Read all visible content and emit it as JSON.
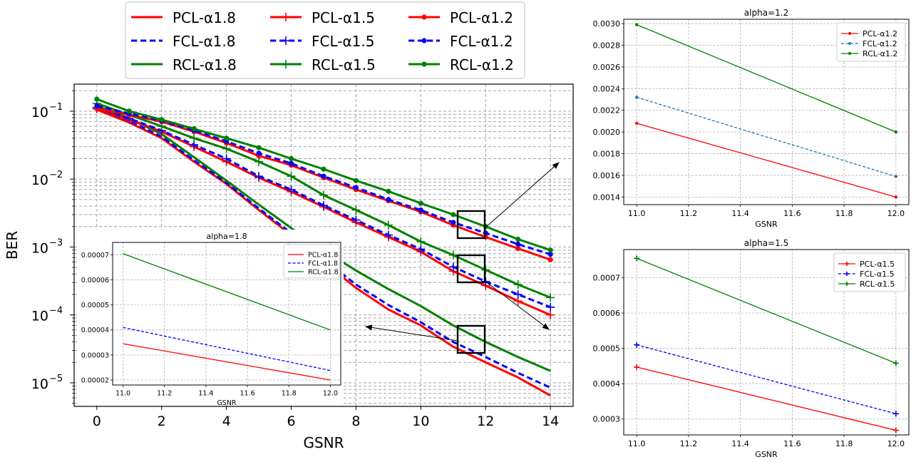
{
  "legend_main": {
    "entries": [
      {
        "label": "PCL-α1.8",
        "color": "#ff0000",
        "dash": "solid",
        "marker": "none"
      },
      {
        "label": "FCL-α1.8",
        "color": "#0000ff",
        "dash": "dashed",
        "marker": "none"
      },
      {
        "label": "RCL-α1.8",
        "color": "#008000",
        "dash": "solid",
        "marker": "none"
      },
      {
        "label": "PCL-α1.5",
        "color": "#ff0000",
        "dash": "solid",
        "marker": "plus"
      },
      {
        "label": "FCL-α1.5",
        "color": "#0000ff",
        "dash": "dashed",
        "marker": "plus"
      },
      {
        "label": "RCL-α1.5",
        "color": "#008000",
        "dash": "solid",
        "marker": "plus"
      },
      {
        "label": "PCL-α1.2",
        "color": "#ff0000",
        "dash": "solid",
        "marker": "dot"
      },
      {
        "label": "FCL-α1.2",
        "color": "#0000ff",
        "dash": "dashed",
        "marker": "dot"
      },
      {
        "label": "RCL-α1.2",
        "color": "#008000",
        "dash": "solid",
        "marker": "dot"
      }
    ]
  },
  "chart_data": [
    {
      "id": "main",
      "type": "line",
      "xlabel": "GSNR",
      "ylabel": "BER",
      "yscale": "log",
      "xlim": [
        -0.7,
        14.7
      ],
      "ylim": [
        4.5e-06,
        0.25
      ],
      "xticks": [
        0,
        2,
        4,
        6,
        8,
        10,
        12,
        14
      ],
      "yticks": [
        {
          "value": 0.1,
          "base": "10",
          "exp": "−1"
        },
        {
          "value": 0.01,
          "base": "10",
          "exp": "−2"
        },
        {
          "value": 0.001,
          "base": "10",
          "exp": "−3"
        },
        {
          "value": 0.0001,
          "base": "10",
          "exp": "−4"
        },
        {
          "value": 1e-05,
          "base": "10",
          "exp": "−5"
        }
      ],
      "grid": true,
      "series": [
        {
          "name": "PCL-α1.8",
          "color": "#ff0000",
          "dash": "solid",
          "marker": "none",
          "x": [
            0,
            1,
            2,
            3,
            4,
            5,
            6,
            7,
            8,
            9,
            10,
            11,
            12,
            13,
            14
          ],
          "y": [
            0.105,
            0.068,
            0.04,
            0.018,
            0.0085,
            0.0035,
            0.0015,
            0.0006,
            0.00025,
            0.00012,
            7e-05,
            3.4e-05,
            2e-05,
            1.2e-05,
            6.5e-06
          ]
        },
        {
          "name": "FCL-α1.8",
          "color": "#0000ff",
          "dash": "dashed",
          "marker": "none",
          "x": [
            0,
            1,
            2,
            3,
            4,
            5,
            6,
            7,
            8,
            9,
            10,
            11,
            12,
            13,
            14
          ],
          "y": [
            0.11,
            0.072,
            0.042,
            0.019,
            0.0088,
            0.0037,
            0.0016,
            0.00065,
            0.00028,
            0.00014,
            7.8e-05,
            4e-05,
            2.4e-05,
            1.4e-05,
            8.5e-06
          ]
        },
        {
          "name": "RCL-α1.8",
          "color": "#008000",
          "dash": "solid",
          "marker": "none",
          "x": [
            0,
            1,
            2,
            3,
            4,
            5,
            6,
            7,
            8,
            9,
            10,
            11,
            12,
            13,
            14
          ],
          "y": [
            0.12,
            0.078,
            0.046,
            0.021,
            0.0095,
            0.0042,
            0.0019,
            0.0009,
            0.00045,
            0.00024,
            0.000135,
            7e-05,
            4e-05,
            2.4e-05,
            1.5e-05
          ]
        },
        {
          "name": "PCL-α1.5",
          "color": "#ff0000",
          "dash": "solid",
          "marker": "plus",
          "x": [
            0,
            1,
            2,
            3,
            4,
            5,
            6,
            7,
            8,
            9,
            10,
            11,
            12,
            13,
            14
          ],
          "y": [
            0.108,
            0.075,
            0.05,
            0.03,
            0.018,
            0.0105,
            0.0065,
            0.0039,
            0.0023,
            0.0014,
            0.00085,
            0.00044,
            0.00027,
            0.00016,
            0.0001
          ]
        },
        {
          "name": "FCL-α1.5",
          "color": "#0000ff",
          "dash": "dashed",
          "marker": "plus",
          "x": [
            0,
            1,
            2,
            3,
            4,
            5,
            6,
            7,
            8,
            9,
            10,
            11,
            12,
            13,
            14
          ],
          "y": [
            0.113,
            0.078,
            0.052,
            0.032,
            0.02,
            0.011,
            0.007,
            0.0041,
            0.0025,
            0.0015,
            0.00093,
            0.00051,
            0.00031,
            0.0002,
            0.00013
          ]
        },
        {
          "name": "RCL-α1.5",
          "color": "#008000",
          "dash": "solid",
          "marker": "plus",
          "x": [
            0,
            1,
            2,
            3,
            4,
            5,
            6,
            7,
            8,
            9,
            10,
            11,
            12,
            13,
            14
          ],
          "y": [
            0.13,
            0.088,
            0.06,
            0.04,
            0.028,
            0.018,
            0.011,
            0.0058,
            0.0035,
            0.0021,
            0.0012,
            0.00076,
            0.00046,
            0.00028,
            0.00018
          ]
        },
        {
          "name": "PCL-α1.2",
          "color": "#ff0000",
          "dash": "solid",
          "marker": "dot",
          "x": [
            0,
            1,
            2,
            3,
            4,
            5,
            6,
            7,
            8,
            9,
            10,
            11,
            12,
            13,
            14
          ],
          "y": [
            0.11,
            0.088,
            0.07,
            0.05,
            0.034,
            0.022,
            0.016,
            0.0105,
            0.007,
            0.0048,
            0.0033,
            0.0021,
            0.0014,
            0.00095,
            0.00065
          ]
        },
        {
          "name": "FCL-α1.2",
          "color": "#0000ff",
          "dash": "dashed",
          "marker": "dot",
          "x": [
            0,
            1,
            2,
            3,
            4,
            5,
            6,
            7,
            8,
            9,
            10,
            11,
            12,
            13,
            14
          ],
          "y": [
            0.12,
            0.092,
            0.072,
            0.052,
            0.036,
            0.024,
            0.017,
            0.011,
            0.0075,
            0.005,
            0.0035,
            0.0023,
            0.0016,
            0.0011,
            0.00078
          ]
        },
        {
          "name": "RCL-α1.2",
          "color": "#008000",
          "dash": "solid",
          "marker": "dot",
          "x": [
            0,
            1,
            2,
            3,
            4,
            5,
            6,
            7,
            8,
            9,
            10,
            11,
            12,
            13,
            14
          ],
          "y": [
            0.15,
            0.1,
            0.075,
            0.055,
            0.04,
            0.029,
            0.02,
            0.014,
            0.0095,
            0.0066,
            0.0044,
            0.003,
            0.002,
            0.0013,
            0.0009
          ]
        }
      ]
    },
    {
      "id": "inset_a18",
      "type": "line",
      "title": "alpha=1.8",
      "xlabel": "GSNR",
      "ylabel": "",
      "xlim": [
        10.95,
        12.05
      ],
      "ylim": [
        1.8e-05,
        7.5e-05
      ],
      "xticks": [
        "11.0",
        "11.2",
        "11.4",
        "11.6",
        "11.8",
        "12.0"
      ],
      "yticks": [
        "0.00002",
        "0.00003",
        "0.00004",
        "0.00005",
        "0.00006",
        "0.00007"
      ],
      "legend_position": "upper right",
      "grid": true,
      "series": [
        {
          "name": "PCL-α1.8",
          "color": "#ff0000",
          "dash": "solid",
          "marker": "none",
          "x": [
            11,
            12
          ],
          "y": [
            3.45e-05,
            2e-05
          ]
        },
        {
          "name": "FCL-α1.8",
          "color": "#0000ff",
          "dash": "dashed",
          "marker": "none",
          "x": [
            11,
            12
          ],
          "y": [
            4.1e-05,
            2.38e-05
          ]
        },
        {
          "name": "RCL-α1.8",
          "color": "#008000",
          "dash": "solid",
          "marker": "none",
          "x": [
            11,
            12
          ],
          "y": [
            7.05e-05,
            4e-05
          ]
        }
      ]
    },
    {
      "id": "right_a12",
      "type": "line",
      "title": "alpha=1.2",
      "xlabel": "GSNR",
      "ylabel": "",
      "xlim": [
        10.95,
        12.05
      ],
      "ylim": [
        0.00133,
        0.00304
      ],
      "xticks": [
        "11.0",
        "11.2",
        "11.4",
        "11.6",
        "11.8",
        "12.0"
      ],
      "yticks": [
        "0.0014",
        "0.0016",
        "0.0018",
        "0.0020",
        "0.0022",
        "0.0024",
        "0.0026",
        "0.0028",
        "0.0030"
      ],
      "legend_position": "upper right",
      "grid": true,
      "series": [
        {
          "name": "PCL-α1.2",
          "color": "#ff0000",
          "dash": "solid",
          "marker": "dot",
          "x": [
            11,
            12
          ],
          "y": [
            0.00208,
            0.0014
          ]
        },
        {
          "name": "FCL-α1.2",
          "color": "#1f77b4",
          "dash": "dashed",
          "marker": "dot",
          "x": [
            11,
            12
          ],
          "y": [
            0.00232,
            0.00159
          ]
        },
        {
          "name": "RCL-α1.2",
          "color": "#008000",
          "dash": "solid",
          "marker": "dot",
          "x": [
            11,
            12
          ],
          "y": [
            0.00299,
            0.002
          ]
        }
      ]
    },
    {
      "id": "right_a15",
      "type": "line",
      "title": "alpha=1.5",
      "xlabel": "GSNR",
      "ylabel": "",
      "xlim": [
        10.95,
        12.05
      ],
      "ylim": [
        0.000255,
        0.00078
      ],
      "xticks": [
        "11.0",
        "11.2",
        "11.4",
        "11.6",
        "11.8",
        "12.0"
      ],
      "yticks": [
        "0.0003",
        "0.0004",
        "0.0005",
        "0.0006",
        "0.0007"
      ],
      "legend_position": "upper right",
      "grid": true,
      "series": [
        {
          "name": "PCL-α1.5",
          "color": "#ff0000",
          "dash": "solid",
          "marker": "plus",
          "x": [
            11,
            12
          ],
          "y": [
            0.000447,
            0.000268
          ]
        },
        {
          "name": "FCL-α1.5",
          "color": "#0000ff",
          "dash": "dashed",
          "marker": "plus",
          "x": [
            11,
            12
          ],
          "y": [
            0.00051,
            0.000315
          ]
        },
        {
          "name": "RCL-α1.5",
          "color": "#008000",
          "dash": "solid",
          "marker": "plus",
          "x": [
            11,
            12
          ],
          "y": [
            0.000755,
            0.000458
          ]
        }
      ]
    }
  ]
}
